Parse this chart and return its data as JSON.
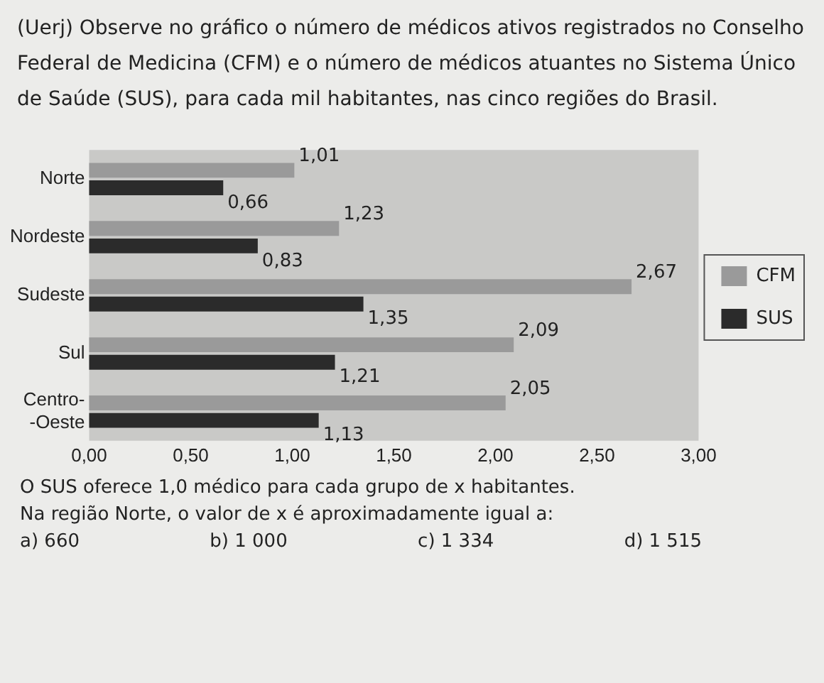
{
  "chart_data": {
    "type": "bar",
    "orientation": "horizontal",
    "title": "(Uerj) Observe no gráfico o número de médicos ativos registrados no Conselho Federal de Medicina (CFM) e o número de médicos atuantes no Sistema Único de Saúde (SUS), para cada mil habitantes, nas cinco regiões do Brasil.",
    "categories": [
      "Norte",
      "Nordeste",
      "Sudeste",
      "Sul",
      "Centro-\n-Oeste"
    ],
    "series": [
      {
        "name": "CFM",
        "color": "#9a9a9a",
        "values": [
          1.01,
          1.23,
          2.67,
          2.09,
          2.05
        ],
        "value_labels": [
          "1,01",
          "1,23",
          "2,67",
          "2,09",
          "2,05"
        ]
      },
      {
        "name": "SUS",
        "color": "#2b2b2b",
        "values": [
          0.66,
          0.83,
          1.35,
          1.21,
          1.13
        ],
        "value_labels": [
          "0,66",
          "0,83",
          "1,35",
          "1,21",
          "1,13"
        ]
      }
    ],
    "xlim": [
      0,
      3
    ],
    "xticks": [
      {
        "value": 0,
        "label": "0,00"
      },
      {
        "value": 0.5,
        "label": "0,50"
      },
      {
        "value": 1,
        "label": "1,00"
      },
      {
        "value": 1.5,
        "label": "1,50"
      },
      {
        "value": 2,
        "label": "2,00"
      },
      {
        "value": 2.5,
        "label": "2,50"
      },
      {
        "value": 3,
        "label": "3,00"
      }
    ],
    "grid": false,
    "legend": "right",
    "annotations": [
      "O SUS oferece 1,0 médico para cada grupo de x habitantes.",
      "Na região Norte, o valor de x é aproximadamente igual a:",
      "a) 660",
      "b) 1 000",
      "c) 1 334",
      "d) 1 515"
    ]
  }
}
